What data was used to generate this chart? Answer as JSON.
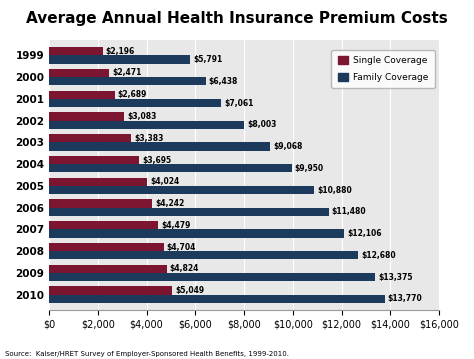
{
  "title": "Average Annual Health Insurance Premium Costs",
  "years": [
    "1999",
    "2000",
    "2001",
    "2002",
    "2003",
    "2004",
    "2005",
    "2006",
    "2007",
    "2008",
    "2009",
    "2010"
  ],
  "single": [
    2196,
    2471,
    2689,
    3083,
    3383,
    3695,
    4024,
    4242,
    4479,
    4704,
    4824,
    5049
  ],
  "family": [
    5791,
    6438,
    7061,
    8003,
    9068,
    9950,
    10880,
    11480,
    12106,
    12680,
    13375,
    13770
  ],
  "single_color": "#7B1530",
  "family_color": "#1B3A5C",
  "background_color": "#E8E8E8",
  "bar_height": 0.38,
  "xlim": [
    0,
    16000
  ],
  "xticks": [
    0,
    2000,
    4000,
    6000,
    8000,
    10000,
    12000,
    14000,
    16000
  ],
  "source_text": "Source:  Kaiser/HRET Survey of Employer-Sponsored Health Benefits, 1999-2010.",
  "legend_single": "Single Coverage",
  "legend_family": "Family Coverage",
  "title_fontsize": 11,
  "label_fontsize": 5.5,
  "axis_label_fontsize": 7,
  "year_fontsize": 7.5
}
